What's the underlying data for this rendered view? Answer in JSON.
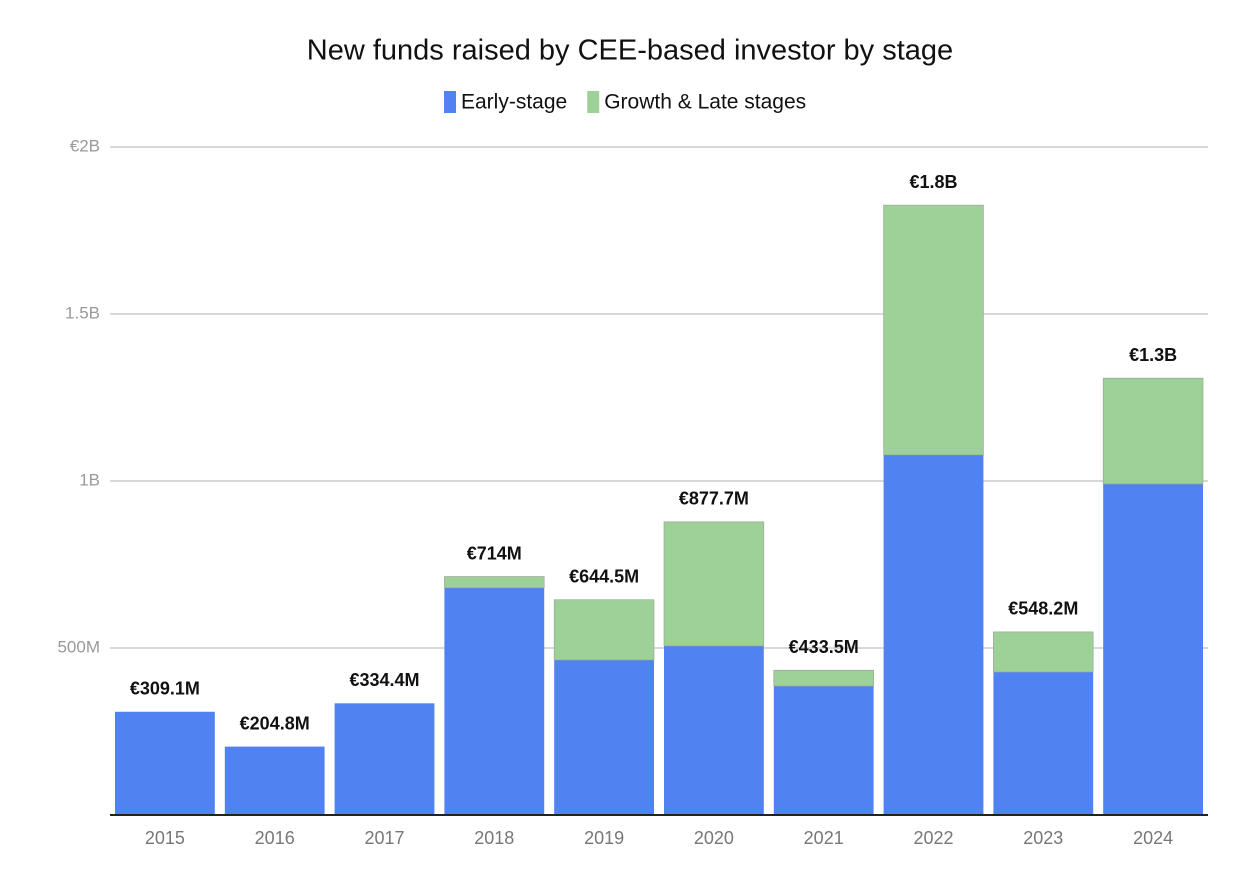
{
  "chart_data": {
    "type": "stacked_bar",
    "title": "New funds raised by CEE-based investor by stage",
    "categories": [
      "2015",
      "2016",
      "2017",
      "2018",
      "2019",
      "2020",
      "2021",
      "2022",
      "2023",
      "2024"
    ],
    "series": [
      {
        "name": "Early-stage",
        "color": "#5082f2",
        "values": [
          309100000,
          204800000,
          334400000,
          680000000,
          464000000,
          506000000,
          386000000,
          1078000000,
          428000000,
          991000000
        ]
      },
      {
        "name": "Growth & Late stages",
        "color": "#9dd197",
        "values": [
          0,
          0,
          0,
          34000000,
          180500000,
          371700000,
          47500000,
          748000000,
          120200000,
          317000000
        ]
      }
    ],
    "totals": [
      309100000,
      204800000,
      334400000,
      714000000,
      644500000,
      877700000,
      433500000,
      1826000000,
      548200000,
      1308000000
    ],
    "total_labels": [
      "€309.1M",
      "€204.8M",
      "€334.4M",
      "€714M",
      "€644.5M",
      "€877.7M",
      "€433.5M",
      "€1.8B",
      "€548.2M",
      "€1.3B"
    ],
    "ylim": [
      0,
      2000000000
    ],
    "yticks": [
      {
        "value": 500000000,
        "label": "500M"
      },
      {
        "value": 1000000000,
        "label": "1B"
      },
      {
        "value": 1500000000,
        "label": "1.5B"
      },
      {
        "value": 2000000000,
        "label": "€2B"
      }
    ],
    "grid": true
  }
}
